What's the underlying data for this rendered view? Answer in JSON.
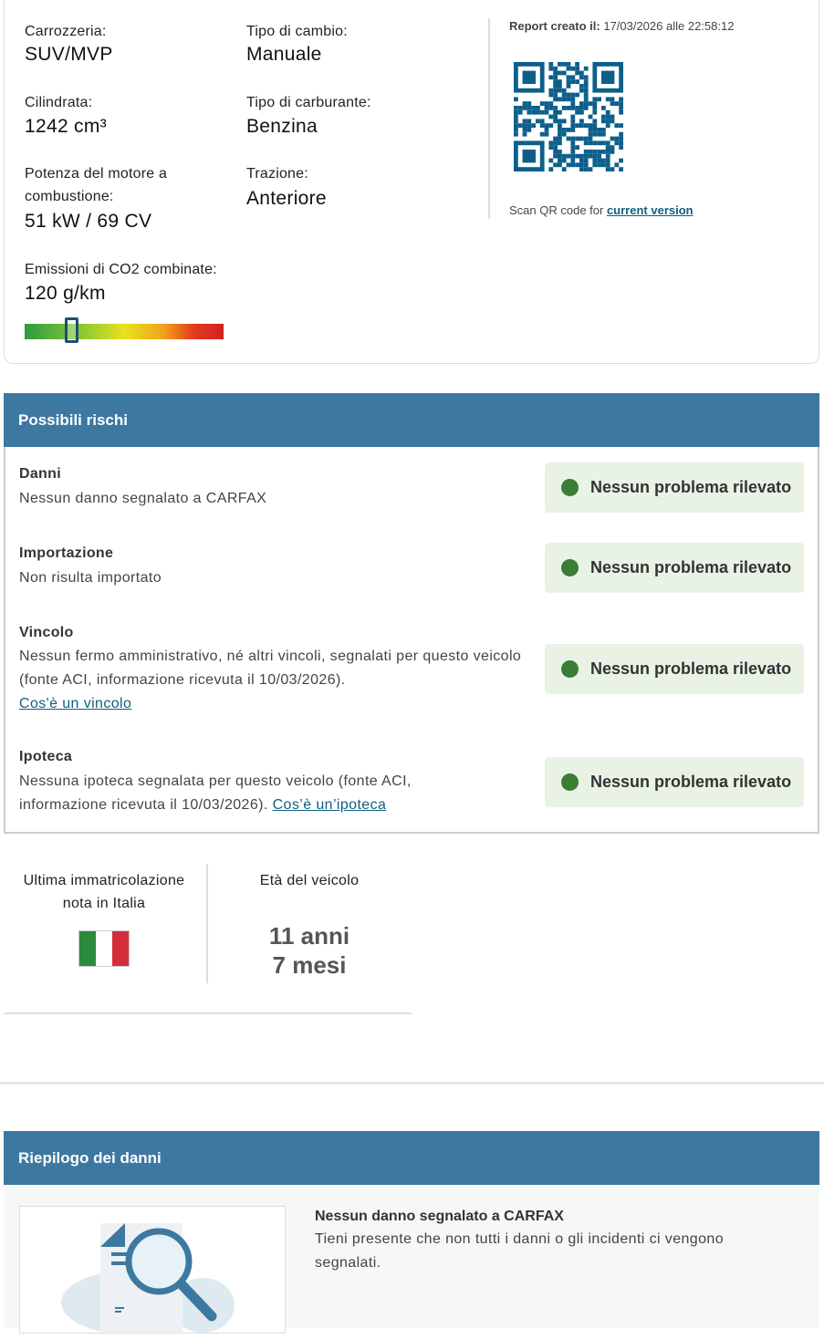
{
  "specs": {
    "body_label": "Carrozzeria:",
    "body_value": "SUV/MVP",
    "gearbox_label": "Tipo di cambio:",
    "gearbox_value": "Manuale",
    "displacement_label": "Cilindrata:",
    "displacement_value": "1242 cm³",
    "fuel_label": "Tipo di carburante:",
    "fuel_value": "Benzina",
    "power_label": "Potenza del motore a combustione:",
    "power_value": "51 kW / 69 CV",
    "traction_label": "Trazione:",
    "traction_value": "Anteriore",
    "co2_label": "Emissioni di CO2 combinate:",
    "co2_value": "120 g/km",
    "co2_scale_position_pct": 24
  },
  "report": {
    "created_label": "Report creato il:",
    "created_value": "17/03/2026 alle 22:58:12",
    "scan_text": "Scan QR code for",
    "scan_link": "current version",
    "qr_color": "#0d5f8a"
  },
  "risks": {
    "title": "Possibili rischi",
    "items": [
      {
        "title": "Danni",
        "text": "Nessun danno segnalato a CARFAX",
        "status": "Nessun problema rilevato"
      },
      {
        "title": "Importazione",
        "text": "Non risulta importato",
        "status": "Nessun problema rilevato"
      },
      {
        "title": "Vincolo",
        "text": "Nessun fermo amministrativo, né altri vincoli, segnalati per questo veicolo (fonte ACI, informazione ricevuta il 10/03/2026).",
        "link": "Cos'è un vincolo",
        "status": "Nessun problema rilevato"
      },
      {
        "title": "Ipoteca",
        "text": "Nessuna ipoteca segnalata per questo veicolo (fonte ACI, informazione ricevuta il 10/03/2026).",
        "link": "Cos’è un’ipoteca",
        "status": "Nessun problema rilevato"
      }
    ],
    "status_color": "#3a7d34"
  },
  "registration": {
    "label": "Ultima immatricolazione nota in Italia",
    "flag": "italy-flag"
  },
  "age": {
    "label": "Età del veicolo",
    "years": "11 anni",
    "months": "7 mesi"
  },
  "damage_summary": {
    "title": "Riepilogo dei danni",
    "heading": "Nessun danno segnalato a CARFAX",
    "text": "Tieni presente che non tutti i danni o gli incidenti ci vengono segnalati."
  }
}
